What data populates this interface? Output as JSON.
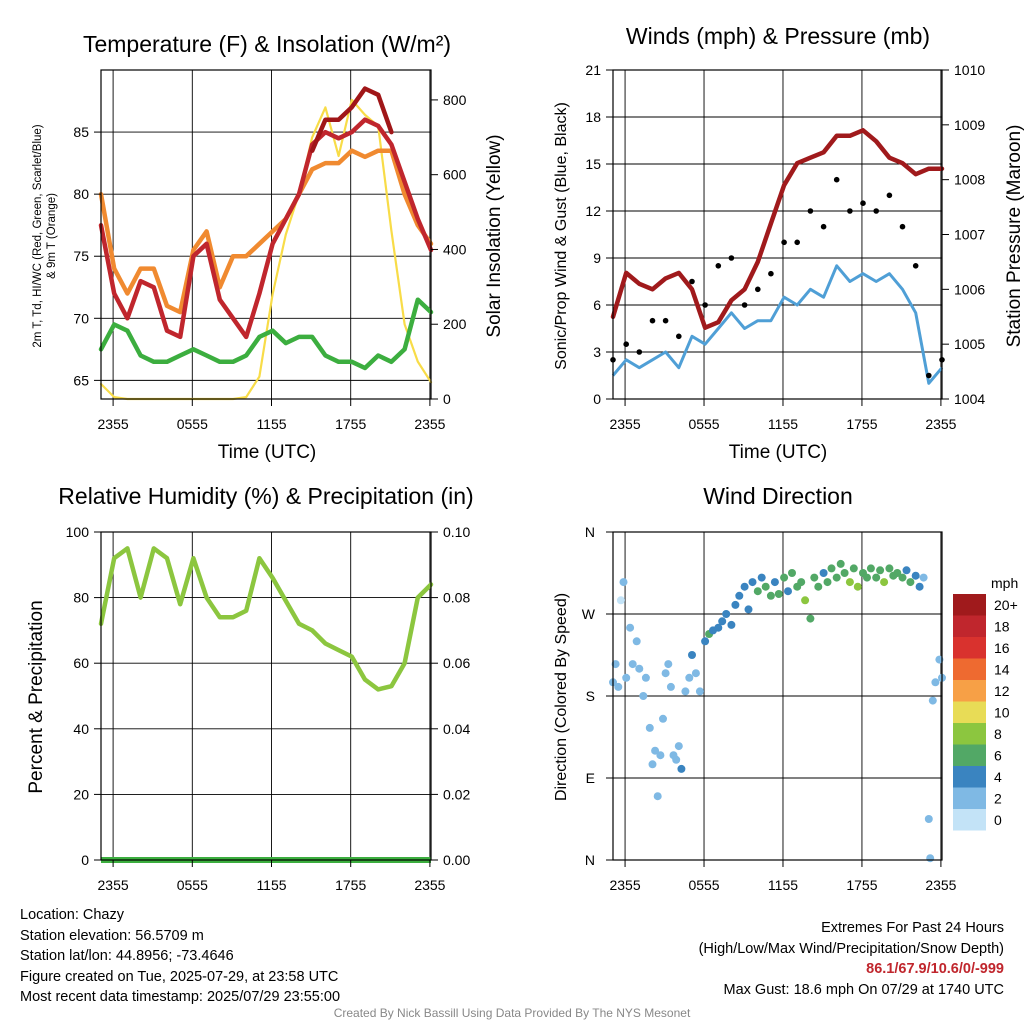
{
  "panels": {
    "temp": {
      "title": "Temperature (F) & Insolation (W/m²)",
      "ylabel_left_line1": "2m T, Td, HI/WC (Red, Green, Scarlet/Blue)",
      "ylabel_left_line2": "& 9m T (Orange)",
      "ylabel_right": "Solar Insolation (Yellow)",
      "xlabel": "Time (UTC)"
    },
    "wind": {
      "title": "Winds (mph) & Pressure (mb)",
      "ylabel_left": "Sonic/Prop Wind & Gust (Blue, Black)",
      "ylabel_right": "Station Pressure (Maroon)",
      "xlabel": "Time (UTC)"
    },
    "rh": {
      "title": "Relative Humidity (%) & Precipitation (in)",
      "ylabel_left": "Percent & Precipitation"
    },
    "dir": {
      "title": "Wind Direction",
      "ylabel_left": "Direction (Colored By Speed)"
    }
  },
  "info": {
    "location": "Location: Chazy",
    "elevation": "Station elevation: 56.5709 m",
    "latlon": "Station lat/lon: 44.8956; -73.4646",
    "created": "Figure created on Tue, 2025-07-29, at 23:58 UTC",
    "recent": "Most recent data timestamp: 2025/07/29 23:55:00",
    "extremes_title": "Extremes For Past 24 Hours",
    "extremes_subtitle": "(High/Low/Max Wind/Precipitation/Snow Depth)",
    "extremes_values": "86.1/67.9/10.6/0/-999",
    "max_gust": "Max Gust: 18.6 mph On 07/29 at 1740 UTC",
    "credit": "Created By Nick Bassill Using Data Provided By The NYS Mesonet"
  },
  "colors": {
    "temp": "#c0262d",
    "dewpoint": "#3cae3f",
    "heatindex": "#a01618",
    "temp9m": "#f08a30",
    "solar": "#f8dc48",
    "wind": "#4f9fd6",
    "gust": "#000000",
    "pressure": "#a01a1c",
    "rh": "#8cc63f",
    "precip": "#3cae3f"
  },
  "chart_data": [
    {
      "type": "line",
      "title": "Temperature (F) & Insolation (W/m²)",
      "xlabel": "Time (UTC)",
      "x_ticks": [
        "2355",
        "0555",
        "1155",
        "1755",
        "2355"
      ],
      "x": [
        -1,
        0,
        1,
        2,
        3,
        4,
        5,
        6,
        7,
        8,
        9,
        10,
        11,
        12,
        13,
        14,
        15,
        16,
        17,
        18,
        19,
        20,
        21,
        22,
        23,
        24
      ],
      "ylim": [
        63.5,
        90
      ],
      "y_ticks": [
        65,
        70,
        75,
        80,
        85
      ],
      "y2lim": [
        0,
        880
      ],
      "y2_ticks": [
        0,
        200,
        400,
        600,
        800
      ],
      "series": [
        {
          "name": "2m T",
          "axis": "left",
          "values": [
            77.5,
            72,
            70,
            73,
            72.5,
            69,
            68.5,
            75,
            76,
            71.5,
            70,
            68.5,
            72,
            76,
            78,
            80,
            84,
            85,
            84.5,
            85,
            86,
            85.5,
            84,
            81,
            78,
            75.5
          ]
        },
        {
          "name": "Td",
          "axis": "left",
          "values": [
            67.5,
            69.5,
            69,
            67,
            66.5,
            66.5,
            67,
            67.5,
            67,
            66.5,
            66.5,
            67,
            68.5,
            69,
            68,
            68.5,
            68.5,
            67,
            66.5,
            66.5,
            66,
            67,
            66.5,
            67.5,
            71.5,
            70.5
          ]
        },
        {
          "name": "HI/WC",
          "axis": "left",
          "values": [
            null,
            null,
            null,
            null,
            null,
            null,
            null,
            null,
            null,
            null,
            null,
            null,
            null,
            null,
            null,
            null,
            83.5,
            86,
            86,
            87,
            88.5,
            88,
            85,
            null,
            null,
            null
          ]
        },
        {
          "name": "9m T",
          "axis": "left",
          "values": [
            80,
            74,
            72,
            74,
            74,
            71,
            70.5,
            75.5,
            77,
            72.5,
            75,
            75,
            76,
            77,
            78,
            80,
            82,
            82.5,
            82.5,
            83.5,
            83,
            83.5,
            83.5,
            80,
            77.5,
            76
          ]
        },
        {
          "name": "Solar Insolation",
          "axis": "right",
          "values": [
            40,
            5,
            0,
            0,
            0,
            0,
            0,
            0,
            0,
            0,
            0,
            5,
            60,
            280,
            440,
            550,
            700,
            780,
            650,
            800,
            760,
            730,
            450,
            200,
            100,
            45
          ]
        }
      ]
    },
    {
      "type": "line",
      "title": "Winds (mph) & Pressure (mb)",
      "xlabel": "Time (UTC)",
      "x_ticks": [
        "2355",
        "0555",
        "1155",
        "1755",
        "2355"
      ],
      "x": [
        -1,
        0,
        1,
        2,
        3,
        4,
        5,
        6,
        7,
        8,
        9,
        10,
        11,
        12,
        13,
        14,
        15,
        16,
        17,
        18,
        19,
        20,
        21,
        22,
        23,
        24
      ],
      "ylim": [
        0,
        21
      ],
      "y_ticks": [
        0,
        3,
        6,
        9,
        12,
        15,
        18,
        21
      ],
      "y2lim": [
        1004,
        1010
      ],
      "y2_ticks": [
        1004,
        1005,
        1006,
        1007,
        1008,
        1009,
        1010
      ],
      "series": [
        {
          "name": "Wind",
          "axis": "left",
          "values": [
            1.5,
            2.5,
            2,
            2.5,
            3,
            2,
            4,
            3.5,
            4.5,
            5.5,
            4.5,
            5,
            5,
            6.5,
            6,
            7,
            6.5,
            8.5,
            7.5,
            8,
            7.5,
            8,
            7,
            5.5,
            1,
            2
          ]
        },
        {
          "name": "Gust",
          "axis": "left",
          "values": [
            2.5,
            3.5,
            3,
            5,
            5,
            4,
            7.5,
            6,
            8.5,
            9,
            6,
            7,
            8,
            10,
            10,
            12,
            11,
            14,
            12,
            12.5,
            12,
            13,
            11,
            8.5,
            1.5,
            2.5
          ]
        },
        {
          "name": "Station Pressure",
          "axis": "right",
          "values": [
            1005.5,
            1006.3,
            1006.1,
            1006.0,
            1006.2,
            1006.3,
            1006.0,
            1005.3,
            1005.4,
            1005.8,
            1006.0,
            1006.5,
            1007.2,
            1007.9,
            1008.3,
            1008.4,
            1008.5,
            1008.8,
            1008.8,
            1008.9,
            1008.7,
            1008.4,
            1008.3,
            1008.1,
            1008.2,
            1008.2
          ]
        }
      ]
    },
    {
      "type": "line",
      "title": "Relative Humidity (%) & Precipitation (in)",
      "x_ticks": [
        "2355",
        "0555",
        "1155",
        "1755",
        "2355"
      ],
      "x": [
        -1,
        0,
        1,
        2,
        3,
        4,
        5,
        6,
        7,
        8,
        9,
        10,
        11,
        12,
        13,
        14,
        15,
        16,
        17,
        18,
        19,
        20,
        21,
        22,
        23,
        24
      ],
      "ylim": [
        0,
        100
      ],
      "y_ticks": [
        0,
        20,
        40,
        60,
        80,
        100
      ],
      "y2lim": [
        0,
        0.1
      ],
      "y2_ticks": [
        "0.00",
        "0.02",
        "0.04",
        "0.06",
        "0.08",
        "0.10"
      ],
      "series": [
        {
          "name": "Relative Humidity",
          "axis": "left",
          "values": [
            72,
            92,
            95,
            80,
            95,
            92,
            78,
            92,
            80,
            74,
            74,
            76,
            92,
            86,
            79,
            72,
            70,
            66,
            64,
            62,
            55,
            52,
            53,
            60,
            80,
            84
          ]
        },
        {
          "name": "Precipitation",
          "axis": "right",
          "values": [
            0,
            0,
            0,
            0,
            0,
            0,
            0,
            0,
            0,
            0,
            0,
            0,
            0,
            0,
            0,
            0,
            0,
            0,
            0,
            0,
            0,
            0,
            0,
            0,
            0,
            0
          ]
        }
      ]
    },
    {
      "type": "scatter",
      "title": "Wind Direction",
      "x_ticks": [
        "2355",
        "0555",
        "1155",
        "1755",
        "2355"
      ],
      "y_ticks": [
        "N",
        "W",
        "S",
        "E",
        "N"
      ],
      "ylim": [
        0,
        360
      ],
      "legend": {
        "title": "mph",
        "labels": [
          "20+",
          "18",
          "16",
          "14",
          "12",
          "10",
          "8",
          "6",
          "4",
          "2",
          "0"
        ],
        "colors": [
          "#a01a1c",
          "#c0262d",
          "#d9322e",
          "#ee6a30",
          "#f7a046",
          "#e8dc56",
          "#8cc63f",
          "#52a866",
          "#3a84c0",
          "#7fb9e4",
          "#c3e3f7"
        ]
      },
      "points": [
        {
          "x": -1,
          "dir": 195,
          "speed": 1
        },
        {
          "x": -0.8,
          "dir": 215,
          "speed": 2
        },
        {
          "x": -0.6,
          "dir": 190,
          "speed": 1
        },
        {
          "x": -0.4,
          "dir": 285,
          "speed": 0
        },
        {
          "x": -0.2,
          "dir": 305,
          "speed": 1
        },
        {
          "x": 0,
          "dir": 200,
          "speed": 2
        },
        {
          "x": 0.3,
          "dir": 255,
          "speed": 1
        },
        {
          "x": 0.5,
          "dir": 215,
          "speed": 2
        },
        {
          "x": 0.8,
          "dir": 240,
          "speed": 2
        },
        {
          "x": 1,
          "dir": 210,
          "speed": 1
        },
        {
          "x": 1.3,
          "dir": 180,
          "speed": 2
        },
        {
          "x": 1.5,
          "dir": 200,
          "speed": 2
        },
        {
          "x": 1.8,
          "dir": 145,
          "speed": 1
        },
        {
          "x": 2,
          "dir": 105,
          "speed": 2
        },
        {
          "x": 2.2,
          "dir": 120,
          "speed": 2
        },
        {
          "x": 2.4,
          "dir": 70,
          "speed": 1
        },
        {
          "x": 2.6,
          "dir": 115,
          "speed": 2
        },
        {
          "x": 2.8,
          "dir": 155,
          "speed": 1
        },
        {
          "x": 3,
          "dir": 205,
          "speed": 2
        },
        {
          "x": 3.2,
          "dir": 215,
          "speed": 2
        },
        {
          "x": 3.4,
          "dir": 190,
          "speed": 2
        },
        {
          "x": 3.6,
          "dir": 115,
          "speed": 2
        },
        {
          "x": 3.8,
          "dir": 110,
          "speed": 1
        },
        {
          "x": 4,
          "dir": 125,
          "speed": 2
        },
        {
          "x": 4.2,
          "dir": 100,
          "speed": 3
        },
        {
          "x": 4.5,
          "dir": 185,
          "speed": 1
        },
        {
          "x": 4.8,
          "dir": 200,
          "speed": 2
        },
        {
          "x": 5,
          "dir": 225,
          "speed": 3
        },
        {
          "x": 5.3,
          "dir": 205,
          "speed": 2
        },
        {
          "x": 5.6,
          "dir": 185,
          "speed": 2
        },
        {
          "x": 6,
          "dir": 240,
          "speed": 3
        },
        {
          "x": 6.3,
          "dir": 248,
          "speed": 6
        },
        {
          "x": 6.6,
          "dir": 252,
          "speed": 4
        },
        {
          "x": 7,
          "dir": 255,
          "speed": 4
        },
        {
          "x": 7.3,
          "dir": 262,
          "speed": 3
        },
        {
          "x": 7.6,
          "dir": 270,
          "speed": 4
        },
        {
          "x": 8,
          "dir": 258,
          "speed": 3
        },
        {
          "x": 8.3,
          "dir": 280,
          "speed": 4
        },
        {
          "x": 8.6,
          "dir": 290,
          "speed": 4
        },
        {
          "x": 9,
          "dir": 300,
          "speed": 4
        },
        {
          "x": 9.3,
          "dir": 275,
          "speed": 4
        },
        {
          "x": 9.6,
          "dir": 305,
          "speed": 3
        },
        {
          "x": 10,
          "dir": 295,
          "speed": 5
        },
        {
          "x": 10.3,
          "dir": 310,
          "speed": 4
        },
        {
          "x": 10.6,
          "dir": 300,
          "speed": 6
        },
        {
          "x": 11,
          "dir": 290,
          "speed": 6
        },
        {
          "x": 11.3,
          "dir": 305,
          "speed": 4
        },
        {
          "x": 11.6,
          "dir": 292,
          "speed": 6
        },
        {
          "x": 12,
          "dir": 310,
          "speed": 5
        },
        {
          "x": 12.3,
          "dir": 295,
          "speed": 4
        },
        {
          "x": 12.6,
          "dir": 315,
          "speed": 6
        },
        {
          "x": 13,
          "dir": 300,
          "speed": 5
        },
        {
          "x": 13.3,
          "dir": 305,
          "speed": 6
        },
        {
          "x": 13.6,
          "dir": 285,
          "speed": 8
        },
        {
          "x": 14,
          "dir": 265,
          "speed": 6
        },
        {
          "x": 14.3,
          "dir": 310,
          "speed": 6
        },
        {
          "x": 14.6,
          "dir": 300,
          "speed": 5
        },
        {
          "x": 15,
          "dir": 315,
          "speed": 4
        },
        {
          "x": 15.3,
          "dir": 305,
          "speed": 6
        },
        {
          "x": 15.6,
          "dir": 320,
          "speed": 5
        },
        {
          "x": 16,
          "dir": 310,
          "speed": 6
        },
        {
          "x": 16.3,
          "dir": 325,
          "speed": 6
        },
        {
          "x": 16.6,
          "dir": 315,
          "speed": 6
        },
        {
          "x": 17,
          "dir": 305,
          "speed": 7
        },
        {
          "x": 17.3,
          "dir": 320,
          "speed": 5
        },
        {
          "x": 17.6,
          "dir": 300,
          "speed": 7
        },
        {
          "x": 18,
          "dir": 315,
          "speed": 6
        },
        {
          "x": 18.3,
          "dir": 310,
          "speed": 5
        },
        {
          "x": 18.6,
          "dir": 320,
          "speed": 6
        },
        {
          "x": 19,
          "dir": 310,
          "speed": 6
        },
        {
          "x": 19.3,
          "dir": 318,
          "speed": 5
        },
        {
          "x": 19.6,
          "dir": 305,
          "speed": 7
        },
        {
          "x": 20,
          "dir": 320,
          "speed": 6
        },
        {
          "x": 20.3,
          "dir": 312,
          "speed": 5
        },
        {
          "x": 20.6,
          "dir": 315,
          "speed": 6
        },
        {
          "x": 21,
          "dir": 310,
          "speed": 5
        },
        {
          "x": 21.3,
          "dir": 318,
          "speed": 4
        },
        {
          "x": 21.6,
          "dir": 305,
          "speed": 5
        },
        {
          "x": 22,
          "dir": 312,
          "speed": 4
        },
        {
          "x": 22.3,
          "dir": 300,
          "speed": 3
        },
        {
          "x": 22.6,
          "dir": 310,
          "speed": 2
        },
        {
          "x": 23,
          "dir": 45,
          "speed": 1
        },
        {
          "x": 23.1,
          "dir": 2,
          "speed": 1
        },
        {
          "x": 23.3,
          "dir": 175,
          "speed": 1
        },
        {
          "x": 23.5,
          "dir": 195,
          "speed": 2
        },
        {
          "x": 23.8,
          "dir": 220,
          "speed": 1
        },
        {
          "x": 24,
          "dir": 200,
          "speed": 1
        }
      ]
    }
  ]
}
